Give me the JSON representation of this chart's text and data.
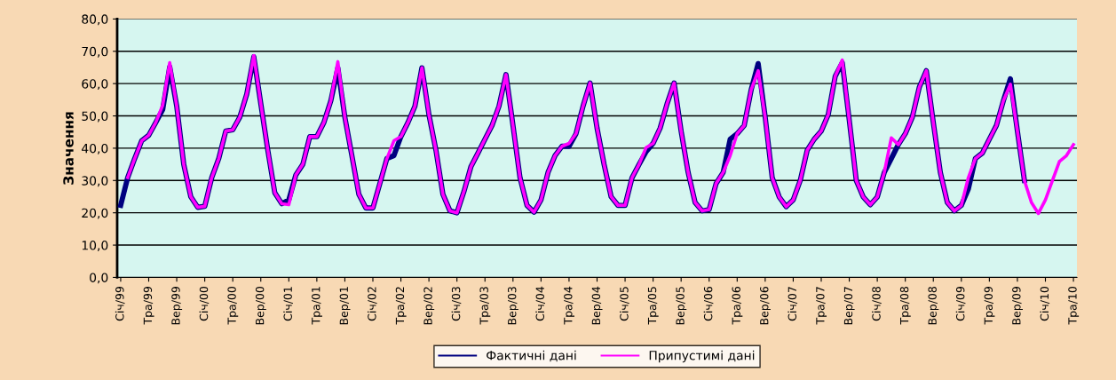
{
  "chart_data": {
    "type": "line",
    "ylabel": "Значення",
    "categories": [
      "Січ/99",
      null,
      null,
      null,
      "Тра/99",
      null,
      null,
      null,
      "Вер/99",
      null,
      null,
      null,
      "Січ/00",
      null,
      null,
      null,
      "Тра/00",
      null,
      null,
      null,
      "Вер/00",
      null,
      null,
      null,
      "Січ/01",
      null,
      null,
      null,
      "Тра/01",
      null,
      null,
      null,
      "Вер/01",
      null,
      null,
      null,
      "Січ/02",
      null,
      null,
      null,
      "Тра/02",
      null,
      null,
      null,
      "Вер/02",
      null,
      null,
      null,
      "Січ/03",
      null,
      null,
      null,
      "Тра/03",
      null,
      null,
      null,
      "Вер/03",
      null,
      null,
      null,
      "Січ/04",
      null,
      null,
      null,
      "Тра/04",
      null,
      null,
      null,
      "Вер/04",
      null,
      null,
      null,
      "Січ/05",
      null,
      null,
      null,
      "Тра/05",
      null,
      null,
      null,
      "Вер/05",
      null,
      null,
      null,
      "Січ/06",
      null,
      null,
      null,
      "Тра/06",
      null,
      null,
      null,
      "Вер/06",
      null,
      null,
      null,
      "Січ/07",
      null,
      null,
      null,
      "Тра/07",
      null,
      null,
      null,
      "Вер/07",
      null,
      null,
      null,
      "Січ/08",
      null,
      null,
      null,
      "Тра/08",
      null,
      null,
      null,
      "Вер/08",
      null,
      null,
      null,
      "Січ/09",
      null,
      null,
      null,
      "Тра/09",
      null,
      null,
      null,
      "Вер/09",
      null,
      null,
      null,
      "Січ/10",
      null,
      null,
      null,
      "Тра/10"
    ],
    "series": [
      {
        "name": "Фактичні дані",
        "color": "#000080",
        "values": [
          22.3,
          30.9,
          36.8,
          42.3,
          44,
          47.9,
          52,
          65.2,
          53,
          35,
          25,
          21.7,
          22,
          30.9,
          36.8,
          45.3,
          45.7,
          49.6,
          56.8,
          68.3,
          53.8,
          39.4,
          26.2,
          22.8,
          24,
          31.7,
          35,
          43.6,
          43.6,
          47.9,
          54.7,
          64.9,
          49.6,
          37.7,
          25.7,
          21.5,
          21.5,
          29.1,
          36.8,
          37.7,
          43.6,
          47.9,
          53,
          64.9,
          50.4,
          39.4,
          25.7,
          20.6,
          20,
          26.6,
          34.3,
          38.5,
          42.8,
          47,
          53,
          62.8,
          47,
          30.9,
          22.3,
          20.2,
          24,
          32.5,
          37.7,
          40.6,
          40.6,
          44.5,
          53,
          60.2,
          46.2,
          35,
          25,
          22.3,
          22.3,
          30.9,
          35,
          38.9,
          41.5,
          46.2,
          53.8,
          60.2,
          45.3,
          32.5,
          23.2,
          20.6,
          21,
          29.1,
          32.5,
          42.8,
          44.5,
          47,
          58.1,
          66.2,
          49.6,
          30.9,
          24.9,
          21.9,
          24,
          30,
          39.4,
          42.8,
          45.3,
          50.4,
          62.3,
          66.5,
          48.7,
          30,
          24.9,
          22.5,
          24.9,
          32.5,
          36.8,
          41.1,
          44.5,
          49.6,
          58.9,
          64,
          47.9,
          32.5,
          23.2,
          20.6,
          22.3,
          27.4,
          36.8,
          38.5,
          42.8,
          47,
          54.7,
          61.5,
          45.3,
          30,
          null,
          null,
          null,
          null,
          null,
          null,
          null
        ]
      },
      {
        "name": "Припустимі дані",
        "color": "#ff00ff",
        "values": [
          null,
          30.9,
          36.8,
          42.3,
          44,
          47.9,
          53.3,
          66.5,
          53,
          35,
          25,
          21.7,
          22,
          30.9,
          36.8,
          45.3,
          45.7,
          49.6,
          56.8,
          68.7,
          53.8,
          39.4,
          26.2,
          22.8,
          22.5,
          31.7,
          35,
          43.6,
          43.6,
          47.9,
          54.7,
          66.8,
          49.6,
          37.7,
          25.7,
          21.5,
          21.5,
          29.1,
          36.8,
          42.3,
          43.6,
          47.9,
          53,
          64.9,
          50.4,
          39.4,
          25.7,
          20.6,
          20,
          26.6,
          34.3,
          38.5,
          42.8,
          47,
          53,
          62.8,
          47,
          30.9,
          22.3,
          20.2,
          24,
          32.5,
          37.7,
          40.6,
          41.5,
          44.5,
          53,
          60.2,
          46.2,
          35,
          25,
          22.3,
          22.3,
          30.9,
          35,
          40.2,
          41.5,
          46.2,
          53.8,
          60.2,
          45.3,
          32.5,
          23.2,
          20.6,
          21,
          29.1,
          32.5,
          37.7,
          44.5,
          47,
          58.1,
          64,
          49.6,
          30.9,
          24.9,
          21.9,
          24,
          30,
          39.4,
          42.8,
          45.3,
          50.4,
          62.3,
          67.3,
          48.7,
          30,
          24.9,
          22.5,
          24.9,
          32.5,
          43.2,
          41.1,
          44.5,
          49.6,
          58.9,
          64,
          47.9,
          32.5,
          23.2,
          20.6,
          22.3,
          30.9,
          36.8,
          38.5,
          42.8,
          47,
          54.7,
          59.8,
          45.3,
          30,
          23.2,
          19.8,
          24,
          30,
          35.9,
          37.7,
          41.1
        ]
      }
    ],
    "ylim": [
      0,
      80
    ],
    "yticks": [
      {
        "value": 0,
        "label": "0,0"
      },
      {
        "value": 10,
        "label": "10,0"
      },
      {
        "value": 20,
        "label": "20,0"
      },
      {
        "value": 30,
        "label": "30,0"
      },
      {
        "value": 40,
        "label": "40,0"
      },
      {
        "value": 50,
        "label": "50,0"
      },
      {
        "value": 60,
        "label": "60,0"
      },
      {
        "value": 70,
        "label": "70,0"
      },
      {
        "value": 80,
        "label": "80,0"
      }
    ],
    "grid": "y",
    "legend": "bottom",
    "marker": "none",
    "line_style": "solid"
  }
}
